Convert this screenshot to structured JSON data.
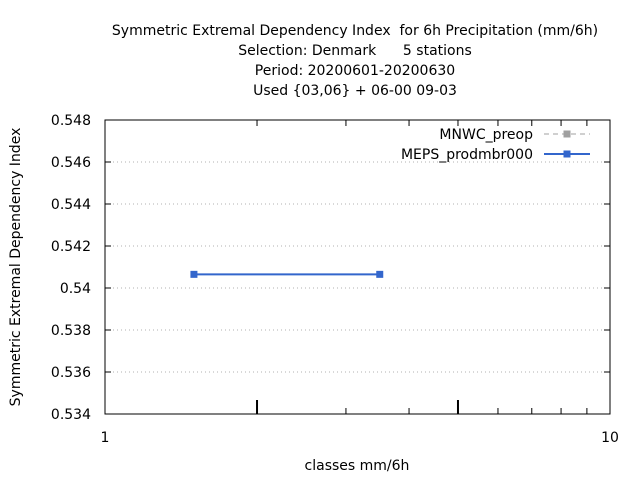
{
  "chart_data": {
    "type": "line",
    "title_lines": [
      "Symmetric Extremal Dependency Index  for 6h Precipitation (mm/6h)",
      "Selection: Denmark      5 stations",
      "Period: 20200601-20200630",
      "Used {03,06} + 06-00 09-03"
    ],
    "xlabel": "classes mm/6h",
    "ylabel": "Symmetric Extremal Dependency Index",
    "x_scale": "log",
    "xlim": [
      1,
      10
    ],
    "ylim": [
      0.534,
      0.548
    ],
    "x_ticks": [
      1,
      10
    ],
    "x_tick_labels": [
      "1",
      "10"
    ],
    "y_ticks": [
      0.534,
      0.536,
      0.538,
      0.54,
      0.542,
      0.544,
      0.546,
      0.548
    ],
    "y_tick_labels": [
      "0.534",
      "0.536",
      "0.538",
      "0.54",
      "0.542",
      "0.544",
      "0.546",
      "0.548"
    ],
    "grid": {
      "x": false,
      "y": true,
      "style": "dotted"
    },
    "legend_position": "top-right",
    "series": [
      {
        "name": "MNWC_preop",
        "color": "#a0a0a0",
        "dashed": true,
        "x": [],
        "y": []
      },
      {
        "name": "MEPS_prodmbr000",
        "color": "#3366cc",
        "dashed": false,
        "x": [
          1.5,
          3.5
        ],
        "y": [
          0.54065,
          0.54065
        ]
      }
    ]
  }
}
